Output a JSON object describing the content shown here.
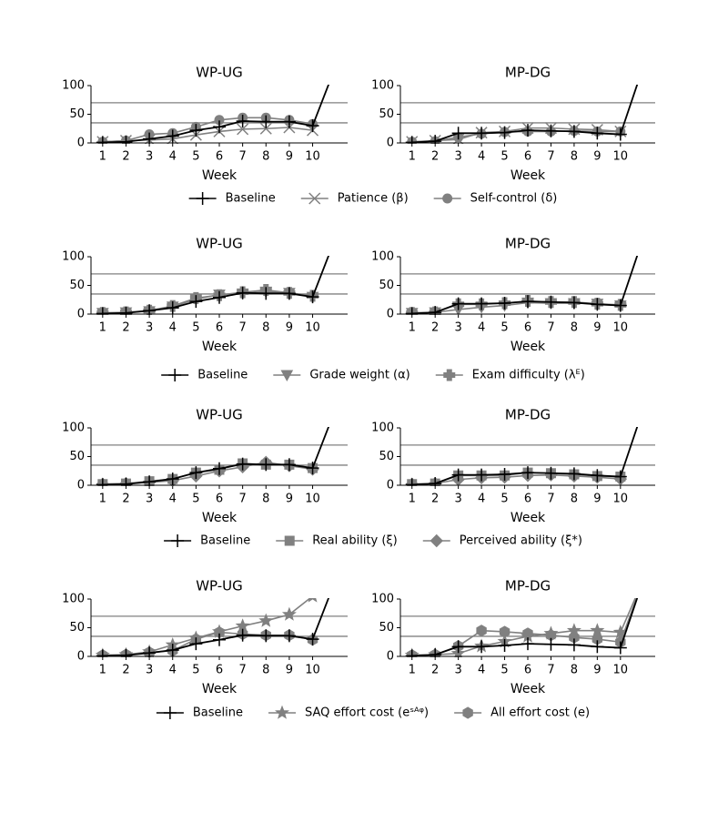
{
  "chart_data": [
    {
      "type": "line",
      "title": "WP-UG",
      "xlabel": "Week",
      "x": [
        1,
        2,
        3,
        4,
        5,
        6,
        7,
        8,
        9,
        10,
        11
      ],
      "xlim": [
        0.5,
        11.5
      ],
      "xticks": [
        1,
        2,
        3,
        4,
        5,
        6,
        7,
        8,
        9,
        10
      ],
      "ylim": [
        0,
        100
      ],
      "yticks": [
        0,
        50,
        100
      ],
      "reference_lines": [
        35,
        70
      ],
      "series": [
        {
          "name": "Baseline",
          "color": "#000000",
          "marker": "plus",
          "values": [
            1,
            2,
            7,
            12,
            22,
            28,
            38,
            37,
            37,
            30,
            135
          ]
        },
        {
          "name": "Patience (β)",
          "color": "#808080",
          "marker": "x",
          "values": [
            2,
            4,
            5,
            7,
            14,
            20,
            24,
            25,
            27,
            22,
            null
          ]
        },
        {
          "name": "Self-control (δ)",
          "color": "#808080",
          "marker": "circle",
          "values": [
            2,
            4,
            15,
            17,
            28,
            40,
            44,
            44,
            40,
            33,
            null
          ]
        }
      ]
    },
    {
      "type": "line",
      "title": "MP-DG",
      "xlabel": "Week",
      "x": [
        1,
        2,
        3,
        4,
        5,
        6,
        7,
        8,
        9,
        10,
        11
      ],
      "xlim": [
        0.5,
        11.5
      ],
      "xticks": [
        1,
        2,
        3,
        4,
        5,
        6,
        7,
        8,
        9,
        10
      ],
      "ylim": [
        0,
        100
      ],
      "yticks": [
        0,
        50,
        100
      ],
      "reference_lines": [
        35,
        70
      ],
      "series": [
        {
          "name": "Baseline",
          "color": "#000000",
          "marker": "plus",
          "values": [
            1,
            3,
            17,
            17,
            18,
            22,
            21,
            20,
            17,
            15,
            135
          ]
        },
        {
          "name": "Patience (β)",
          "color": "#808080",
          "marker": "x",
          "values": [
            2,
            4,
            6,
            18,
            20,
            26,
            26,
            24,
            23,
            20,
            null
          ]
        },
        {
          "name": "Self-control (δ)",
          "color": "#808080",
          "marker": "circle",
          "values": [
            2,
            3,
            10,
            16,
            19,
            20,
            20,
            21,
            20,
            20,
            null
          ]
        }
      ]
    },
    {
      "type": "line",
      "title": "WP-UG",
      "xlabel": "Week",
      "x": [
        1,
        2,
        3,
        4,
        5,
        6,
        7,
        8,
        9,
        10,
        11
      ],
      "xlim": [
        0.5,
        11.5
      ],
      "xticks": [
        1,
        2,
        3,
        4,
        5,
        6,
        7,
        8,
        9,
        10
      ],
      "ylim": [
        0,
        100
      ],
      "yticks": [
        0,
        50,
        100
      ],
      "reference_lines": [
        35,
        70
      ],
      "series": [
        {
          "name": "Baseline",
          "color": "#000000",
          "marker": "plus",
          "values": [
            1,
            2,
            6,
            11,
            22,
            29,
            37,
            36,
            36,
            30,
            135
          ]
        },
        {
          "name": "Grade weight (α)",
          "color": "#808080",
          "marker": "triangle-down",
          "values": [
            2,
            3,
            5,
            13,
            26,
            34,
            36,
            39,
            37,
            30,
            null
          ]
        },
        {
          "name": "Exam difficulty (λᴱ)",
          "color": "#808080",
          "marker": "plus-filled",
          "values": [
            2,
            3,
            6,
            14,
            28,
            33,
            38,
            42,
            37,
            32,
            null
          ]
        }
      ]
    },
    {
      "type": "line",
      "title": "MP-DG",
      "xlabel": "Week",
      "x": [
        1,
        2,
        3,
        4,
        5,
        6,
        7,
        8,
        9,
        10,
        11
      ],
      "xlim": [
        0.5,
        11.5
      ],
      "xticks": [
        1,
        2,
        3,
        4,
        5,
        6,
        7,
        8,
        9,
        10
      ],
      "ylim": [
        0,
        100
      ],
      "yticks": [
        0,
        50,
        100
      ],
      "reference_lines": [
        35,
        70
      ],
      "series": [
        {
          "name": "Baseline",
          "color": "#000000",
          "marker": "plus",
          "values": [
            1,
            3,
            18,
            18,
            19,
            22,
            21,
            20,
            17,
            15,
            135
          ]
        },
        {
          "name": "Grade weight (α)",
          "color": "#808080",
          "marker": "triangle-down",
          "values": [
            2,
            3,
            8,
            12,
            15,
            20,
            19,
            19,
            18,
            15,
            null
          ]
        },
        {
          "name": "Exam difficulty (λᴱ)",
          "color": "#808080",
          "marker": "plus-filled",
          "values": [
            2,
            3,
            17,
            17,
            19,
            23,
            21,
            21,
            18,
            16,
            null
          ]
        }
      ]
    },
    {
      "type": "line",
      "title": "WP-UG",
      "xlabel": "Week",
      "x": [
        1,
        2,
        3,
        4,
        5,
        6,
        7,
        8,
        9,
        10,
        11
      ],
      "xlim": [
        0.5,
        11.5
      ],
      "xticks": [
        1,
        2,
        3,
        4,
        5,
        6,
        7,
        8,
        9,
        10
      ],
      "ylim": [
        0,
        100
      ],
      "yticks": [
        0,
        50,
        100
      ],
      "reference_lines": [
        35,
        70
      ],
      "series": [
        {
          "name": "Baseline",
          "color": "#000000",
          "marker": "plus",
          "values": [
            1,
            2,
            6,
            11,
            22,
            29,
            37,
            36,
            36,
            30,
            135
          ]
        },
        {
          "name": "Real ability (ξ)",
          "color": "#808080",
          "marker": "square",
          "values": [
            2,
            3,
            7,
            11,
            22,
            27,
            38,
            36,
            36,
            30,
            null
          ]
        },
        {
          "name": "Perceived ability (ξ*)",
          "color": "#808080",
          "marker": "diamond",
          "values": [
            2,
            3,
            5,
            8,
            16,
            25,
            32,
            40,
            34,
            28,
            null
          ]
        }
      ]
    },
    {
      "type": "line",
      "title": "MP-DG",
      "xlabel": "Week",
      "x": [
        1,
        2,
        3,
        4,
        5,
        6,
        7,
        8,
        9,
        10,
        11
      ],
      "xlim": [
        0.5,
        11.5
      ],
      "xticks": [
        1,
        2,
        3,
        4,
        5,
        6,
        7,
        8,
        9,
        10
      ],
      "ylim": [
        0,
        100
      ],
      "yticks": [
        0,
        50,
        100
      ],
      "reference_lines": [
        35,
        70
      ],
      "series": [
        {
          "name": "Baseline",
          "color": "#000000",
          "marker": "plus",
          "values": [
            1,
            3,
            18,
            18,
            19,
            22,
            21,
            20,
            17,
            15,
            135
          ]
        },
        {
          "name": "Real ability (ξ)",
          "color": "#808080",
          "marker": "square",
          "values": [
            2,
            3,
            17,
            17,
            17,
            22,
            21,
            19,
            16,
            15,
            null
          ]
        },
        {
          "name": "Perceived ability (ξ*)",
          "color": "#808080",
          "marker": "diamond",
          "values": [
            2,
            3,
            10,
            13,
            14,
            17,
            18,
            16,
            14,
            11,
            null
          ]
        }
      ]
    },
    {
      "type": "line",
      "title": "WP-UG",
      "xlabel": "Week",
      "x": [
        1,
        2,
        3,
        4,
        5,
        6,
        7,
        8,
        9,
        10,
        11
      ],
      "xlim": [
        0.5,
        11.5
      ],
      "xticks": [
        1,
        2,
        3,
        4,
        5,
        6,
        7,
        8,
        9,
        10
      ],
      "ylim": [
        0,
        100
      ],
      "yticks": [
        0,
        50,
        100
      ],
      "reference_lines": [
        35,
        70
      ],
      "series": [
        {
          "name": "Baseline",
          "color": "#000000",
          "marker": "plus",
          "values": [
            1,
            2,
            6,
            11,
            22,
            29,
            37,
            36,
            36,
            30,
            135
          ]
        },
        {
          "name": "SAQ effort cost (eˢᴬᵠ)",
          "color": "#808080",
          "marker": "star",
          "values": [
            2,
            3,
            8,
            20,
            32,
            43,
            53,
            62,
            73,
            105,
            null
          ]
        },
        {
          "name": "All effort cost (e)",
          "color": "#808080",
          "marker": "hexagon",
          "values": [
            2,
            3,
            7,
            10,
            30,
            42,
            39,
            37,
            37,
            29,
            null
          ]
        }
      ]
    },
    {
      "type": "line",
      "title": "MP-DG",
      "xlabel": "Week",
      "x": [
        1,
        2,
        3,
        4,
        5,
        6,
        7,
        8,
        9,
        10,
        11
      ],
      "xlim": [
        0.5,
        11.5
      ],
      "xticks": [
        1,
        2,
        3,
        4,
        5,
        6,
        7,
        8,
        9,
        10
      ],
      "ylim": [
        0,
        100
      ],
      "yticks": [
        0,
        50,
        100
      ],
      "reference_lines": [
        35,
        70
      ],
      "series": [
        {
          "name": "Baseline",
          "color": "#000000",
          "marker": "plus",
          "values": [
            1,
            3,
            17,
            17,
            19,
            22,
            21,
            20,
            17,
            15,
            135
          ]
        },
        {
          "name": "SAQ effort cost (eˢᴬᵠ)",
          "color": "#808080",
          "marker": "star",
          "values": [
            2,
            3,
            5,
            18,
            26,
            35,
            40,
            45,
            45,
            42,
            135
          ]
        },
        {
          "name": "All effort cost (e)",
          "color": "#808080",
          "marker": "hexagon",
          "values": [
            2,
            3,
            18,
            45,
            43,
            40,
            37,
            33,
            30,
            25,
            135
          ]
        }
      ]
    }
  ]
}
